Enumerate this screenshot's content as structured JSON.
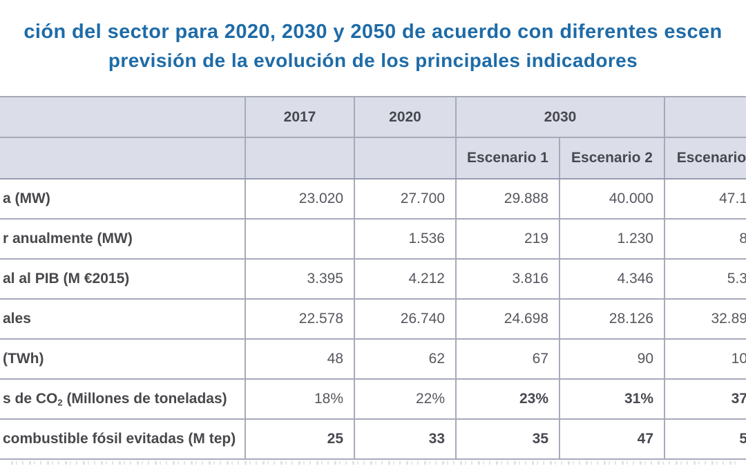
{
  "title": {
    "line1_fragment": "ción del sector para 2020, 2030 y 2050 de acuerdo con diferentes escen",
    "line2": "previsión de la evolución de los principales indicadores"
  },
  "table": {
    "header": {
      "col_blank": "",
      "y2017": "2017",
      "y2020": "2020",
      "y2030": "2030",
      "y2050_fragment": "",
      "esc1": "Escenario 1",
      "esc2": "Escenario 2",
      "esc3_fragment": "Escenario"
    },
    "rows": [
      {
        "label": "a (MW)",
        "c2017": "23.020",
        "c2020": "27.700",
        "e1": "29.888",
        "e2": "40.000",
        "e3": "47.1"
      },
      {
        "label": "r anualmente (MW)",
        "c2017": "",
        "c2020": "1.536",
        "e1": "219",
        "e2": "1.230",
        "e3": "8"
      },
      {
        "label": "al al PIB (M €2015)",
        "c2017": "3.395",
        "c2020": "4.212",
        "e1": "3.816",
        "e2": "4.346",
        "e3": "5.3"
      },
      {
        "label": "ales",
        "c2017": "22.578",
        "c2020": "26.740",
        "e1": "24.698",
        "e2": "28.126",
        "e3": "32.89"
      },
      {
        "label": "(TWh)",
        "c2017": "48",
        "c2020": "62",
        "e1": "67",
        "e2": "90",
        "e3": "10"
      },
      {
        "label_pre": "s de CO",
        "label_sub": "2",
        "label_post": " (Millones de toneladas)",
        "c2017": "18%",
        "c2020": "22%",
        "e1": "23%",
        "e2": "31%",
        "e3": "37"
      },
      {
        "label": "combustible fósil evitadas (M tep)",
        "c2017": "25",
        "c2020": "33",
        "e1": "35",
        "e2": "47",
        "e3": "5"
      }
    ]
  },
  "colors": {
    "title_blue": "#1e6ba7",
    "header_bg": "#dbdde9",
    "border_gray": "#a5aab8",
    "label_text": "#48484c",
    "value_text": "#55575e"
  }
}
